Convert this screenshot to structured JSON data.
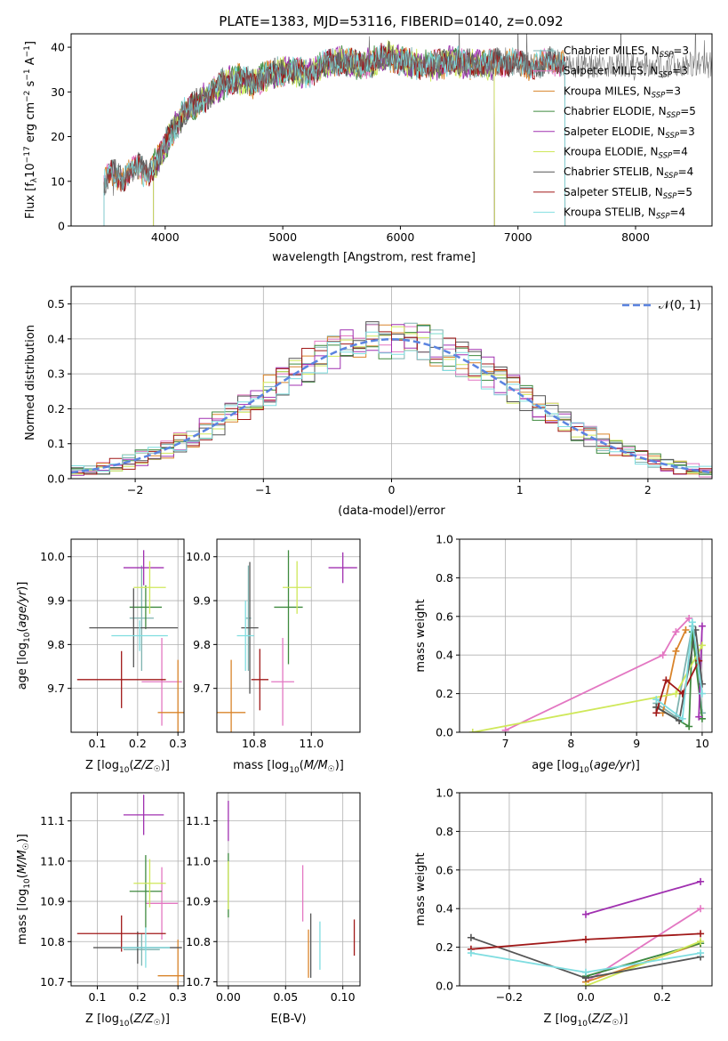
{
  "figure_title": "PLATE=1383, MJD=53116, FIBERID=0140, z=0.092",
  "colors": {
    "Chabrier MILES": "#7fb3b0",
    "Salpeter MILES": "#e377c2",
    "Kroupa MILES": "#d9842b",
    "Chabrier ELODIE": "#3f8a3f",
    "Salpeter ELODIE": "#a030b0",
    "Kroupa ELODIE": "#cfe85a",
    "Chabrier STELIB": "#555555",
    "Salpeter STELIB": "#a01818",
    "Kroupa STELIB": "#7fdde0",
    "normal": "#5b84e0"
  },
  "chart_data": [
    {
      "type": "line",
      "title": "PLATE=1383, MJD=53116, FIBERID=0140, z=0.092",
      "xlabel": "wavelength [Angstrom, rest frame]",
      "ylabel": "Flux [f_λ 10^-17 erg cm^-2 s^-1 A^-1]",
      "xlim": [
        3200,
        8650
      ],
      "ylim": [
        0,
        43
      ],
      "xticks": [
        4000,
        5000,
        6000,
        7000,
        8000
      ],
      "yticks": [
        0,
        10,
        20,
        30,
        40
      ],
      "grid": false,
      "legend_position": "top-right",
      "observed_spectrum": {
        "x": [
          3480,
          3550,
          3650,
          3750,
          3850,
          3950,
          4050,
          4150,
          4250,
          4350,
          4450,
          4600,
          4750,
          4900,
          5050,
          5200,
          5350,
          5500,
          5650,
          5800,
          5900,
          6000,
          6150,
          6300,
          6450,
          6600,
          6750,
          6900,
          7050,
          7200,
          7350,
          7400
        ],
        "y": [
          9,
          12,
          11,
          13,
          12,
          15,
          21,
          25,
          27,
          29,
          31,
          33,
          32,
          34,
          35,
          34,
          36,
          37,
          36,
          37,
          38,
          37,
          36,
          36,
          37,
          36,
          36,
          37,
          36,
          36,
          37,
          37
        ]
      },
      "series": [
        {
          "name": "Chabrier MILES",
          "ssp_count": "3",
          "x_range": [
            3480,
            7400
          ]
        },
        {
          "name": "Salpeter MILES",
          "ssp_count": "3",
          "x_range": [
            3480,
            7400
          ]
        },
        {
          "name": "Kroupa MILES",
          "ssp_count": "3",
          "x_range": [
            3480,
            7400
          ]
        },
        {
          "name": "Chabrier ELODIE",
          "ssp_count": "5",
          "x_range": [
            3900,
            6800
          ]
        },
        {
          "name": "Salpeter ELODIE",
          "ssp_count": "3",
          "x_range": [
            3900,
            6800
          ]
        },
        {
          "name": "Kroupa ELODIE",
          "ssp_count": "4",
          "x_range": [
            3900,
            6800
          ]
        },
        {
          "name": "Chabrier STELIB",
          "ssp_count": "4",
          "x_range": [
            3480,
            8650
          ]
        },
        {
          "name": "Salpeter STELIB",
          "ssp_count": "5",
          "x_range": [
            3480,
            8650
          ]
        },
        {
          "name": "Kroupa STELIB",
          "ssp_count": "4",
          "x_range": [
            3480,
            8650
          ]
        }
      ]
    },
    {
      "type": "bar",
      "xlabel": "(data-model)/error",
      "ylabel": "Normed distribution",
      "xlim": [
        -2.5,
        2.5
      ],
      "ylim": [
        0,
        0.55
      ],
      "xticks": [
        -2,
        -1,
        0,
        1,
        2
      ],
      "yticks": [
        0.0,
        0.1,
        0.2,
        0.3,
        0.4,
        0.5
      ],
      "grid": true,
      "legend_position": "top-right",
      "legend": "𝒩(0, 1)",
      "note": "step histograms of normalized residuals for the 9 fits, compared with a unit normal"
    },
    {
      "type": "scatter",
      "xlabel": "Z [log10(Z/Z☉)]",
      "ylabel": "age [log10(age/yr)]",
      "xlim": [
        0.035,
        0.315
      ],
      "ylim": [
        9.6,
        10.04
      ],
      "xticks": [
        0.1,
        0.2,
        0.3
      ],
      "yticks": [
        9.7,
        9.8,
        9.9,
        10.0
      ],
      "grid": true,
      "points": [
        {
          "series": "Chabrier MILES",
          "x": 0.21,
          "y": 9.86,
          "xerr": 0.03,
          "yerr": 0.12
        },
        {
          "series": "Salpeter MILES",
          "x": 0.26,
          "y": 9.715,
          "xerr": 0.05,
          "yerr": 0.1
        },
        {
          "series": "Kroupa MILES",
          "x": 0.3,
          "y": 9.645,
          "xerr": 0.05,
          "yerr": 0.12
        },
        {
          "series": "Chabrier ELODIE",
          "x": 0.22,
          "y": 9.885,
          "xerr": 0.04,
          "yerr": 0.05
        },
        {
          "series": "Salpeter ELODIE",
          "x": 0.215,
          "y": 9.975,
          "xerr": 0.05,
          "yerr": 0.04
        },
        {
          "series": "Kroupa ELODIE",
          "x": 0.23,
          "y": 9.93,
          "xerr": 0.04,
          "yerr": 0.06
        },
        {
          "series": "Chabrier STELIB",
          "x": 0.19,
          "y": 9.838,
          "xerr": 0.11,
          "yerr": 0.09
        },
        {
          "series": "Salpeter STELIB",
          "x": 0.16,
          "y": 9.72,
          "xerr": 0.11,
          "yerr": 0.065
        },
        {
          "series": "Kroupa STELIB",
          "x": 0.205,
          "y": 9.82,
          "xerr": 0.07,
          "yerr": 0.035
        }
      ]
    },
    {
      "type": "scatter",
      "xlabel": "mass [log10(M/M☉)]",
      "ylabel": "",
      "xlim": [
        10.67,
        11.17
      ],
      "ylim": [
        9.6,
        10.04
      ],
      "xticks": [
        10.8,
        11.0
      ],
      "yticks": [
        9.7,
        9.8,
        9.9,
        10.0
      ],
      "grid": true,
      "points": [
        {
          "series": "Chabrier MILES",
          "x": 10.78,
          "y": 9.86,
          "xerr": 0.01,
          "yerr": 0.12
        },
        {
          "series": "Salpeter MILES",
          "x": 10.9,
          "y": 9.715,
          "xerr": 0.04,
          "yerr": 0.1
        },
        {
          "series": "Kroupa MILES",
          "x": 10.72,
          "y": 9.645,
          "xerr": 0.05,
          "yerr": 0.12
        },
        {
          "series": "Chabrier ELODIE",
          "x": 10.92,
          "y": 9.885,
          "xerr": 0.05,
          "yerr": 0.13
        },
        {
          "series": "Salpeter ELODIE",
          "x": 11.11,
          "y": 9.975,
          "xerr": 0.05,
          "yerr": 0.035
        },
        {
          "series": "Kroupa ELODIE",
          "x": 10.95,
          "y": 9.93,
          "xerr": 0.05,
          "yerr": 0.06
        },
        {
          "series": "Chabrier STELIB",
          "x": 10.785,
          "y": 9.838,
          "xerr": 0.03,
          "yerr": 0.15
        },
        {
          "series": "Salpeter STELIB",
          "x": 10.82,
          "y": 9.72,
          "xerr": 0.03,
          "yerr": 0.07
        },
        {
          "series": "Kroupa STELIB",
          "x": 10.77,
          "y": 9.82,
          "xerr": 0.03,
          "yerr": 0.08
        }
      ]
    },
    {
      "type": "line",
      "xlabel": "age [log10(age/yr)]",
      "ylabel": "mass weight",
      "xlim": [
        6.3,
        10.15
      ],
      "ylim": [
        0,
        1.0
      ],
      "xticks": [
        7,
        8,
        9,
        10
      ],
      "yticks": [
        0.0,
        0.2,
        0.4,
        0.6,
        0.8,
        1.0
      ],
      "grid": true,
      "series": [
        {
          "name": "Chabrier MILES",
          "x": [
            9.3,
            9.6,
            9.85,
            10.0
          ],
          "y": [
            0.15,
            0.08,
            0.55,
            0.1
          ]
        },
        {
          "name": "Salpeter MILES",
          "x": [
            7.0,
            9.4,
            9.6,
            9.8
          ],
          "y": [
            0.01,
            0.4,
            0.52,
            0.59
          ]
        },
        {
          "name": "Kroupa MILES",
          "x": [
            9.4,
            9.6,
            9.75
          ],
          "y": [
            0.1,
            0.42,
            0.53
          ]
        },
        {
          "name": "Chabrier ELODIE",
          "x": [
            9.3,
            9.8,
            9.85,
            10.0
          ],
          "y": [
            0.13,
            0.03,
            0.52,
            0.07
          ]
        },
        {
          "name": "Salpeter ELODIE",
          "x": [
            9.95,
            10.0
          ],
          "y": [
            0.08,
            0.55
          ]
        },
        {
          "name": "Kroupa ELODIE",
          "x": [
            6.5,
            9.6,
            10.0
          ],
          "y": [
            0.0,
            0.2,
            0.45
          ]
        },
        {
          "name": "Chabrier STELIB",
          "x": [
            9.3,
            9.65,
            9.9,
            10.0
          ],
          "y": [
            0.13,
            0.06,
            0.53,
            0.25
          ]
        },
        {
          "name": "Salpeter STELIB",
          "x": [
            9.3,
            9.45,
            9.7,
            9.95
          ],
          "y": [
            0.1,
            0.27,
            0.2,
            0.37
          ]
        },
        {
          "name": "Kroupa STELIB",
          "x": [
            9.3,
            9.7,
            9.85,
            10.0
          ],
          "y": [
            0.17,
            0.07,
            0.57,
            0.2
          ]
        }
      ]
    },
    {
      "type": "scatter",
      "xlabel": "Z [log10(Z/Z☉)]",
      "ylabel": "mass [log10(M/M☉)]",
      "xlim": [
        0.035,
        0.315
      ],
      "ylim": [
        10.69,
        11.17
      ],
      "xticks": [
        0.1,
        0.2,
        0.3
      ],
      "yticks": [
        10.7,
        10.8,
        10.9,
        11.0,
        11.1
      ],
      "grid": true,
      "points": [
        {
          "series": "Chabrier MILES",
          "x": 0.21,
          "y": 10.78,
          "xerr": 0.045,
          "yerr": 0.04
        },
        {
          "series": "Salpeter MILES",
          "x": 0.26,
          "y": 10.895,
          "xerr": 0.04,
          "yerr": 0.09
        },
        {
          "series": "Kroupa MILES",
          "x": 0.3,
          "y": 10.715,
          "xerr": 0.05,
          "yerr": 0.09
        },
        {
          "series": "Chabrier ELODIE",
          "x": 0.22,
          "y": 10.925,
          "xerr": 0.04,
          "yerr": 0.09
        },
        {
          "series": "Salpeter ELODIE",
          "x": 0.215,
          "y": 11.115,
          "xerr": 0.05,
          "yerr": 0.05
        },
        {
          "series": "Kroupa ELODIE",
          "x": 0.23,
          "y": 10.945,
          "xerr": 0.04,
          "yerr": 0.06
        },
        {
          "series": "Chabrier STELIB",
          "x": 0.2,
          "y": 10.785,
          "xerr": 0.11,
          "yerr": 0.04
        },
        {
          "series": "Salpeter STELIB",
          "x": 0.16,
          "y": 10.82,
          "xerr": 0.11,
          "yerr": 0.045
        },
        {
          "series": "Kroupa STELIB",
          "x": 0.22,
          "y": 10.785,
          "xerr": 0.06,
          "yerr": 0.05
        }
      ]
    },
    {
      "type": "scatter",
      "xlabel": "E(B-V)",
      "ylabel": "",
      "xlim": [
        -0.01,
        0.115
      ],
      "ylim": [
        10.69,
        11.17
      ],
      "xticks": [
        0.0,
        0.05,
        0.1
      ],
      "yticks": [
        10.7,
        10.8,
        10.9,
        11.0,
        11.1
      ],
      "grid": true,
      "points": [
        {
          "series": "Salpeter ELODIE",
          "x": 0.0,
          "y": 11.1,
          "yerr": 0.05
        },
        {
          "series": "Chabrier ELODIE",
          "x": 0.0,
          "y": 10.94,
          "yerr": 0.08
        },
        {
          "series": "Kroupa ELODIE",
          "x": 0.0,
          "y": 10.94,
          "yerr": 0.06
        },
        {
          "series": "Salpeter MILES",
          "x": 0.065,
          "y": 10.92,
          "yerr": 0.07
        },
        {
          "series": "Kroupa MILES",
          "x": 0.07,
          "y": 10.77,
          "yerr": 0.06
        },
        {
          "series": "Chabrier STELIB",
          "x": 0.072,
          "y": 10.79,
          "yerr": 0.08
        },
        {
          "series": "Kroupa STELIB",
          "x": 0.08,
          "y": 10.79,
          "yerr": 0.06
        },
        {
          "series": "Salpeter STELIB",
          "x": 0.11,
          "y": 10.81,
          "yerr": 0.045
        }
      ]
    },
    {
      "type": "line",
      "xlabel": "Z [log10(Z/Z☉)]",
      "ylabel": "mass weight",
      "xlim": [
        -0.33,
        0.33
      ],
      "ylim": [
        0,
        1.0
      ],
      "xticks": [
        -0.2,
        0.0,
        0.2
      ],
      "yticks": [
        0.0,
        0.2,
        0.4,
        0.6,
        0.8,
        1.0
      ],
      "grid": true,
      "series": [
        {
          "name": "Chabrier MILES",
          "x": [
            0.0,
            0.3
          ],
          "y": [
            0.05,
            0.22
          ]
        },
        {
          "name": "Salpeter MILES",
          "x": [
            0.0,
            0.3
          ],
          "y": [
            0.02,
            0.4
          ]
        },
        {
          "name": "Kroupa MILES",
          "x": [
            0.0,
            0.3
          ],
          "y": [
            0.02,
            0.22
          ]
        },
        {
          "name": "Chabrier ELODIE",
          "x": [
            0.0,
            0.3
          ],
          "y": [
            0.05,
            0.22
          ]
        },
        {
          "name": "Salpeter ELODIE",
          "x": [
            0.0,
            0.3
          ],
          "y": [
            0.37,
            0.54
          ]
        },
        {
          "name": "Kroupa ELODIE",
          "x": [
            0.0,
            0.3
          ],
          "y": [
            0.0,
            0.23
          ]
        },
        {
          "name": "Chabrier STELIB",
          "x": [
            -0.3,
            0.0,
            0.3
          ],
          "y": [
            0.25,
            0.04,
            0.15
          ]
        },
        {
          "name": "Salpeter STELIB",
          "x": [
            -0.3,
            0.0,
            0.3
          ],
          "y": [
            0.19,
            0.24,
            0.27
          ]
        },
        {
          "name": "Kroupa STELIB",
          "x": [
            -0.3,
            0.0,
            0.3
          ],
          "y": [
            0.17,
            0.07,
            0.17
          ]
        }
      ]
    }
  ]
}
